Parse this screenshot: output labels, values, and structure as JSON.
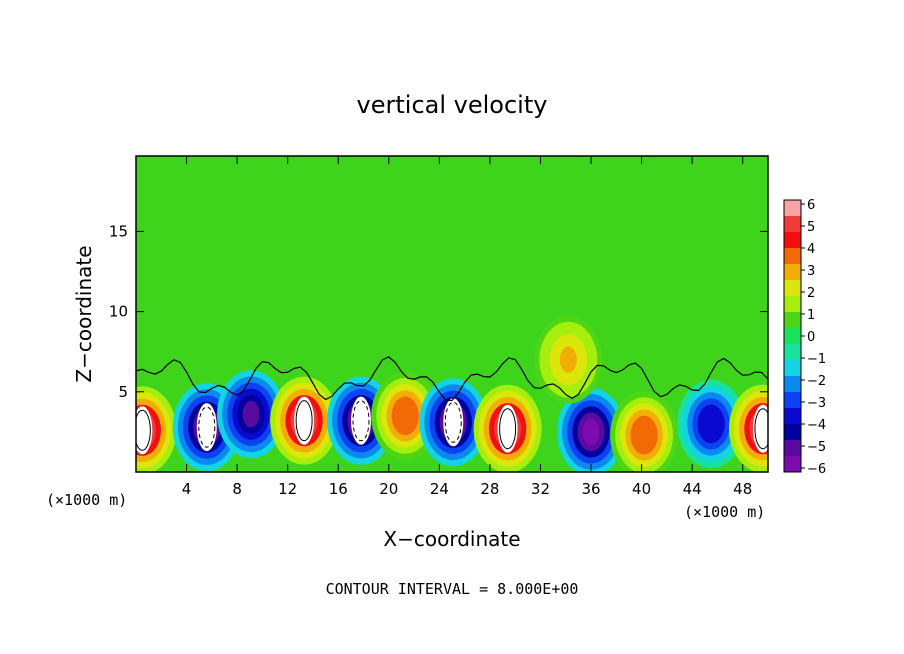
{
  "chart_data": {
    "type": "heatmap",
    "title": "vertical velocity",
    "xlabel": "X−coordinate",
    "ylabel": "Z−coordinate",
    "x_unit_left": "(×1000 m)",
    "x_unit_right": "(×1000 m)",
    "footer": "CONTOUR INTERVAL = 8.000E+00",
    "xlim": [
      0,
      50
    ],
    "ylim": [
      0,
      19.7
    ],
    "xticks": [
      "4",
      "8",
      "12",
      "16",
      "20",
      "24",
      "28",
      "32",
      "36",
      "40",
      "44",
      "48"
    ],
    "yticks": [
      "5",
      "10",
      "15"
    ],
    "colorbar": {
      "ticks": [
        "6",
        "5",
        "4",
        "3",
        "2",
        "1",
        "0",
        "−1",
        "−2",
        "−3",
        "−4",
        "−5",
        "−6"
      ],
      "colors": [
        "#F6A4A4",
        "#F13A3A",
        "#F20F0F",
        "#F26A06",
        "#F2AE06",
        "#DDE60A",
        "#A6EE0E",
        "#4ED615",
        "#19E15B",
        "#17E2A0",
        "#13D4E2",
        "#0B89F1",
        "#0B42F1",
        "#0909D0",
        "#00009E",
        "#5A0AA0",
        "#7D0BB0"
      ]
    },
    "features": [
      {
        "x": 0.5,
        "z": 2.6,
        "w": 13
      },
      {
        "x": 5.6,
        "z": 2.8,
        "w": -11
      },
      {
        "x": 9.1,
        "z": 3.6,
        "w": -5
      },
      {
        "x": 13.3,
        "z": 3.2,
        "w": 15
      },
      {
        "x": 17.8,
        "z": 3.2,
        "w": -12
      },
      {
        "x": 21.3,
        "z": 3.5,
        "w": 4
      },
      {
        "x": 25.1,
        "z": 3.1,
        "w": -9
      },
      {
        "x": 29.4,
        "z": 2.7,
        "w": 14
      },
      {
        "x": 36.0,
        "z": 2.5,
        "w": -8
      },
      {
        "x": 40.2,
        "z": 2.3,
        "w": 4
      },
      {
        "x": 45.5,
        "z": 3.0,
        "w": -4
      },
      {
        "x": 49.6,
        "z": 2.7,
        "w": 12
      },
      {
        "x": 34.2,
        "z": 7.0,
        "w": 3
      }
    ]
  }
}
